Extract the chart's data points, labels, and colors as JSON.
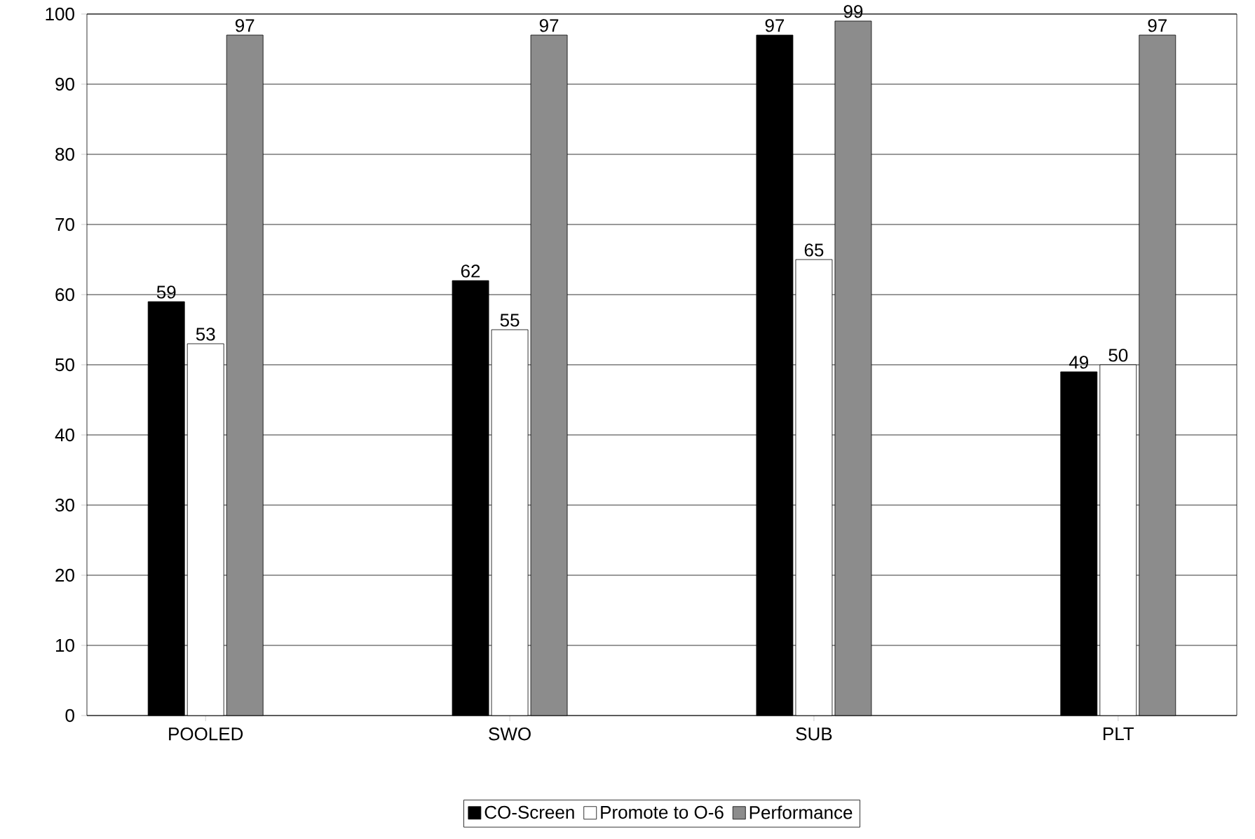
{
  "chart_data": {
    "type": "bar",
    "categories": [
      "POOLED",
      "SWO",
      "SUB",
      "PLT"
    ],
    "series": [
      {
        "name": "CO-Screen",
        "color": "#000000",
        "values": [
          59,
          62,
          97,
          49
        ]
      },
      {
        "name": "Promote to O-6",
        "color": "#ffffff",
        "values": [
          53,
          55,
          65,
          50
        ]
      },
      {
        "name": "Performance",
        "color": "#8c8c8c",
        "values": [
          97,
          97,
          99,
          97
        ]
      }
    ],
    "ylim": [
      0,
      100
    ],
    "yticks": [
      0,
      10,
      20,
      30,
      40,
      50,
      60,
      70,
      80,
      90,
      100
    ],
    "grid": "y",
    "legend": "bottom",
    "data_labels": true
  }
}
